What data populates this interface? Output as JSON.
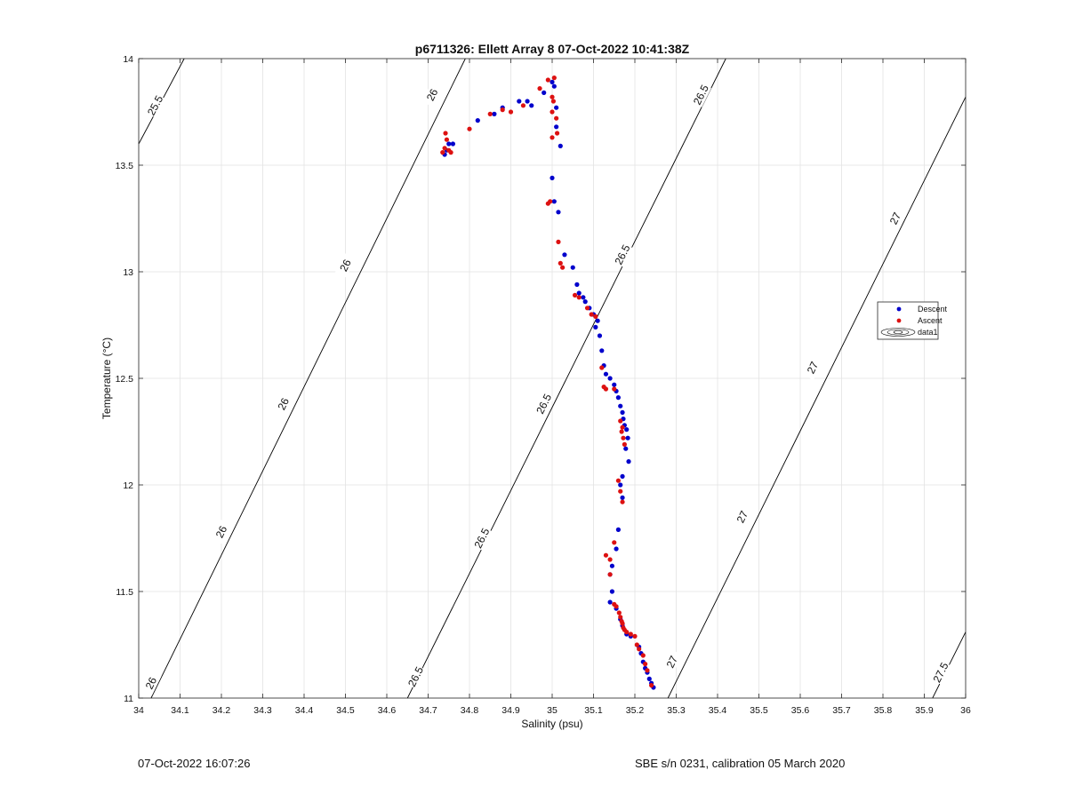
{
  "chart_data": {
    "type": "scatter",
    "title": "p6711326: Ellett Array 8 07-Oct-2022 10:41:38Z",
    "xlabel": "Salinity (psu)",
    "ylabel": "Temperature (°C)",
    "xlim": [
      34,
      36
    ],
    "ylim": [
      11,
      14
    ],
    "grid": true,
    "legend_position": "right",
    "x_ticks": [
      "34",
      "34.1",
      "34.2",
      "34.3",
      "34.4",
      "34.5",
      "34.6",
      "34.7",
      "34.8",
      "34.9",
      "35",
      "35.1",
      "35.2",
      "35.3",
      "35.4",
      "35.5",
      "35.6",
      "35.7",
      "35.8",
      "35.9",
      "36"
    ],
    "y_ticks": [
      "11",
      "11.5",
      "12",
      "12.5",
      "13",
      "13.5",
      "14"
    ],
    "series": [
      {
        "name": "Descent",
        "color": "#0000cc",
        "points": [
          [
            34.74,
            13.55
          ],
          [
            34.745,
            13.57
          ],
          [
            34.75,
            13.6
          ],
          [
            34.76,
            13.6
          ],
          [
            34.82,
            13.71
          ],
          [
            34.86,
            13.74
          ],
          [
            34.88,
            13.77
          ],
          [
            34.92,
            13.8
          ],
          [
            34.94,
            13.8
          ],
          [
            34.95,
            13.78
          ],
          [
            34.98,
            13.84
          ],
          [
            35.0,
            13.89
          ],
          [
            35.005,
            13.87
          ],
          [
            35.01,
            13.77
          ],
          [
            35.01,
            13.68
          ],
          [
            35.02,
            13.59
          ],
          [
            35.0,
            13.44
          ],
          [
            35.005,
            13.33
          ],
          [
            35.015,
            13.28
          ],
          [
            35.03,
            13.08
          ],
          [
            35.05,
            13.02
          ],
          [
            35.06,
            12.94
          ],
          [
            35.065,
            12.9
          ],
          [
            35.075,
            12.88
          ],
          [
            35.08,
            12.86
          ],
          [
            35.09,
            12.83
          ],
          [
            35.1,
            12.8
          ],
          [
            35.11,
            12.77
          ],
          [
            35.105,
            12.74
          ],
          [
            35.115,
            12.7
          ],
          [
            35.12,
            12.63
          ],
          [
            35.125,
            12.56
          ],
          [
            35.13,
            12.52
          ],
          [
            35.14,
            12.5
          ],
          [
            35.15,
            12.47
          ],
          [
            35.155,
            12.44
          ],
          [
            35.16,
            12.41
          ],
          [
            35.165,
            12.37
          ],
          [
            35.17,
            12.34
          ],
          [
            35.172,
            12.31
          ],
          [
            35.175,
            12.28
          ],
          [
            35.18,
            12.26
          ],
          [
            35.183,
            12.22
          ],
          [
            35.178,
            12.17
          ],
          [
            35.185,
            12.11
          ],
          [
            35.17,
            12.04
          ],
          [
            35.165,
            12.0
          ],
          [
            35.17,
            11.94
          ],
          [
            35.16,
            11.79
          ],
          [
            35.155,
            11.7
          ],
          [
            35.145,
            11.62
          ],
          [
            35.14,
            11.58
          ],
          [
            35.145,
            11.5
          ],
          [
            35.14,
            11.45
          ],
          [
            35.155,
            11.42
          ],
          [
            35.165,
            11.37
          ],
          [
            35.17,
            11.34
          ],
          [
            35.18,
            11.3
          ],
          [
            35.19,
            11.29
          ],
          [
            35.21,
            11.24
          ],
          [
            35.215,
            11.21
          ],
          [
            35.22,
            11.17
          ],
          [
            35.225,
            11.14
          ],
          [
            35.23,
            11.12
          ],
          [
            35.235,
            11.09
          ],
          [
            35.24,
            11.07
          ],
          [
            35.245,
            11.05
          ]
        ]
      },
      {
        "name": "Ascent",
        "color": "#dd1111",
        "points": [
          [
            34.735,
            13.56
          ],
          [
            34.74,
            13.58
          ],
          [
            34.745,
            13.62
          ],
          [
            34.742,
            13.65
          ],
          [
            34.75,
            13.57
          ],
          [
            34.755,
            13.56
          ],
          [
            34.8,
            13.67
          ],
          [
            34.85,
            13.74
          ],
          [
            34.88,
            13.76
          ],
          [
            34.9,
            13.75
          ],
          [
            34.93,
            13.78
          ],
          [
            34.97,
            13.86
          ],
          [
            34.99,
            13.9
          ],
          [
            35.005,
            13.91
          ],
          [
            35.0,
            13.82
          ],
          [
            35.003,
            13.8
          ],
          [
            35.0,
            13.75
          ],
          [
            35.01,
            13.72
          ],
          [
            35.0,
            13.63
          ],
          [
            35.012,
            13.65
          ],
          [
            34.99,
            13.32
          ],
          [
            34.995,
            13.33
          ],
          [
            35.015,
            13.14
          ],
          [
            35.02,
            13.04
          ],
          [
            35.025,
            13.02
          ],
          [
            35.055,
            12.89
          ],
          [
            35.065,
            12.88
          ],
          [
            35.085,
            12.83
          ],
          [
            35.095,
            12.8
          ],
          [
            35.105,
            12.79
          ],
          [
            35.12,
            12.55
          ],
          [
            35.125,
            12.46
          ],
          [
            35.13,
            12.45
          ],
          [
            35.15,
            12.45
          ],
          [
            35.165,
            12.3
          ],
          [
            35.17,
            12.27
          ],
          [
            35.168,
            12.25
          ],
          [
            35.172,
            12.22
          ],
          [
            35.175,
            12.19
          ],
          [
            35.16,
            12.02
          ],
          [
            35.165,
            11.97
          ],
          [
            35.17,
            11.92
          ],
          [
            35.15,
            11.73
          ],
          [
            35.13,
            11.67
          ],
          [
            35.14,
            11.65
          ],
          [
            35.14,
            11.58
          ],
          [
            35.15,
            11.44
          ],
          [
            35.155,
            11.43
          ],
          [
            35.162,
            11.4
          ],
          [
            35.165,
            11.38
          ],
          [
            35.168,
            11.36
          ],
          [
            35.17,
            11.35
          ],
          [
            35.172,
            11.33
          ],
          [
            35.175,
            11.32
          ],
          [
            35.18,
            11.31
          ],
          [
            35.19,
            11.3
          ],
          [
            35.2,
            11.29
          ],
          [
            35.205,
            11.25
          ],
          [
            35.21,
            11.23
          ],
          [
            35.22,
            11.2
          ],
          [
            35.225,
            11.16
          ],
          [
            35.23,
            11.13
          ],
          [
            35.24,
            11.06
          ]
        ]
      },
      {
        "name": "data1",
        "color": "#000000",
        "isopycnals": [
          {
            "label": "25.5",
            "points": [
              [
                34.0,
                13.6
              ],
              [
                34.11,
                14.0
              ]
            ],
            "label_pos": [
              34.04,
              13.78
            ]
          },
          {
            "label": "26",
            "points": [
              [
                34.03,
                11.0
              ],
              [
                34.79,
                14.0
              ]
            ],
            "label_pos": [
              [
                34.03,
                11.07
              ],
              [
                34.2,
                11.78
              ],
              [
                34.35,
                12.38
              ],
              [
                34.5,
                13.03
              ],
              [
                34.71,
                13.83
              ]
            ]
          },
          {
            "label": "26.5",
            "points": [
              [
                34.65,
                11.0
              ],
              [
                35.42,
                14.0
              ]
            ],
            "label_pos": [
              [
                34.67,
                11.1
              ],
              [
                34.83,
                11.75
              ],
              [
                34.98,
                12.38
              ],
              [
                35.17,
                13.08
              ],
              [
                35.36,
                13.83
              ]
            ]
          },
          {
            "label": "27",
            "points": [
              [
                35.28,
                11.0
              ],
              [
                36.0,
                13.82
              ]
            ],
            "label_pos": [
              [
                35.29,
                11.17
              ],
              [
                35.46,
                11.85
              ],
              [
                35.63,
                12.55
              ],
              [
                35.83,
                13.25
              ]
            ]
          },
          {
            "label": "27.5",
            "points": [
              [
                35.92,
                11.0
              ],
              [
                36.0,
                11.31
              ]
            ],
            "label_pos": [
              [
                35.94,
                11.12
              ]
            ]
          }
        ]
      }
    ]
  },
  "footer": {
    "left": "07-Oct-2022 16:07:26",
    "right": "SBE s/n 0231, calibration 05 March 2020"
  }
}
